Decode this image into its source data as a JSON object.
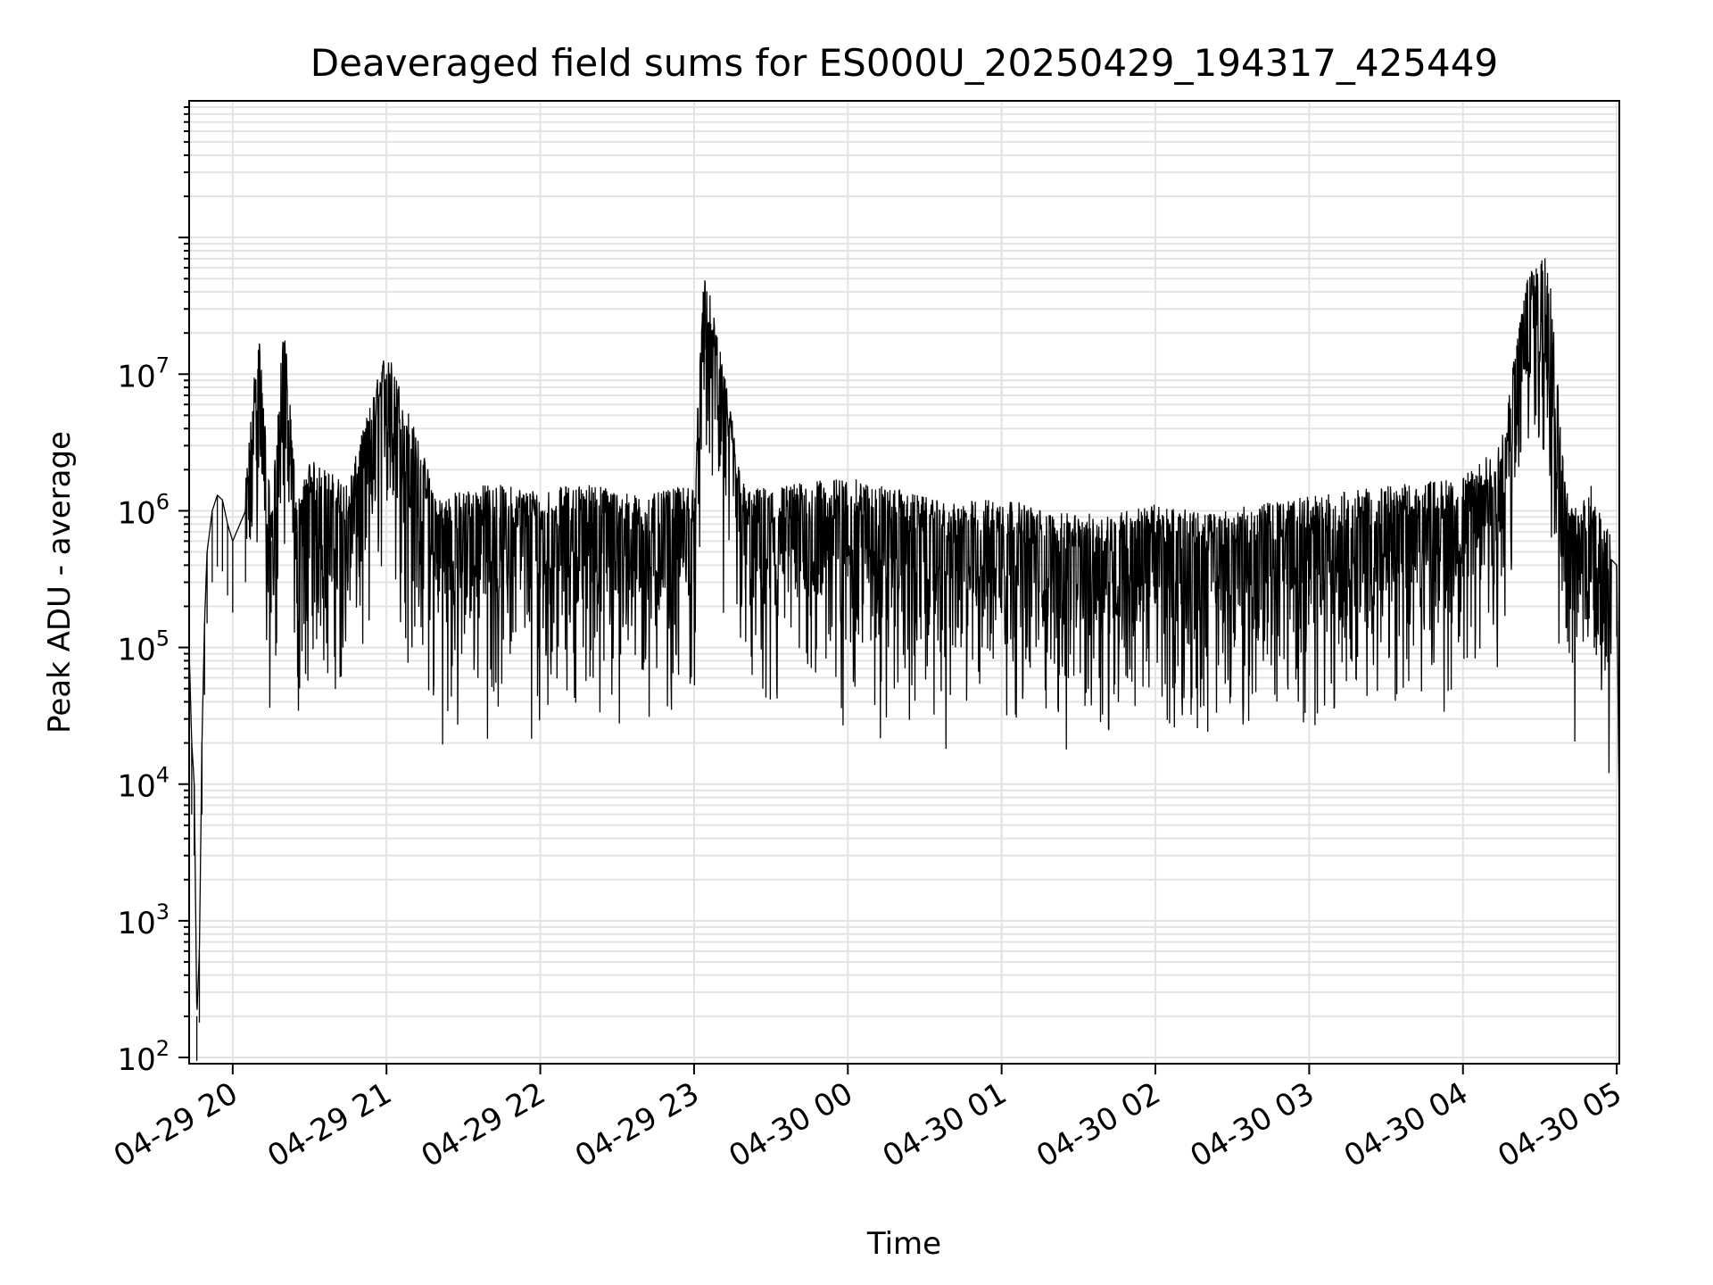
{
  "chart_data": {
    "type": "line",
    "title": "Deaveraged field sums for ES000U_20250429_194317_425449",
    "xlabel": "Time",
    "ylabel": "Peak ADU - average",
    "y_scale": "log",
    "ylim": [
      90,
      1000000000
    ],
    "xlim": [
      "2025-04-29 19:43",
      "2025-04-30 05:01"
    ],
    "x_ticks": [
      "04-29 20",
      "04-29 21",
      "04-29 22",
      "04-29 23",
      "04-30 00",
      "04-30 01",
      "04-30 02",
      "04-30 03",
      "04-30 04",
      "04-30 05"
    ],
    "y_ticks": [
      {
        "base": "10",
        "exp": "2",
        "value": 100
      },
      {
        "base": "10",
        "exp": "3",
        "value": 1000
      },
      {
        "base": "10",
        "exp": "4",
        "value": 10000
      },
      {
        "base": "10",
        "exp": "5",
        "value": 100000
      },
      {
        "base": "10",
        "exp": "6",
        "value": 1000000
      },
      {
        "base": "10",
        "exp": "7",
        "value": 10000000
      }
    ],
    "grid": true,
    "line_color": "#000000",
    "grid_color": "#e3e3e3",
    "series": [
      {
        "x": [
          "2025-04-29 19:43",
          "2025-04-29 19:44",
          "2025-04-29 19:45",
          "2025-04-29 19:46",
          "2025-04-29 19:47",
          "2025-04-29 19:48",
          "2025-04-29 19:49",
          "2025-04-29 19:50",
          "2025-04-29 19:52",
          "2025-04-29 19:54",
          "2025-04-29 19:56",
          "2025-04-29 19:58",
          "2025-04-29 20:00",
          "2025-04-29 20:05",
          "2025-04-29 20:10",
          "2025-04-29 20:15",
          "2025-04-29 20:20",
          "2025-04-29 20:25",
          "2025-04-29 20:30",
          "2025-04-29 20:45",
          "2025-04-29 21:00",
          "2025-04-29 21:20",
          "2025-04-29 21:40",
          "2025-04-29 22:00",
          "2025-04-29 22:20",
          "2025-04-29 22:40",
          "2025-04-29 23:00",
          "2025-04-29 23:04",
          "2025-04-29 23:20",
          "2025-04-29 23:40",
          "2025-04-30 00:00",
          "2025-04-30 00:20",
          "2025-04-30 00:40",
          "2025-04-30 01:00",
          "2025-04-30 01:20",
          "2025-04-30 01:40",
          "2025-04-30 02:00",
          "2025-04-30 02:20",
          "2025-04-30 02:40",
          "2025-04-30 03:00",
          "2025-04-30 03:20",
          "2025-04-30 03:40",
          "2025-04-30 04:00",
          "2025-04-30 04:15",
          "2025-04-30 04:25",
          "2025-04-30 04:33",
          "2025-04-30 04:40",
          "2025-04-30 04:45",
          "2025-04-30 04:50",
          "2025-04-30 04:55",
          "2025-04-30 05:00",
          "2025-04-30 05:01"
        ],
        "y": [
          100000,
          20000,
          10000,
          200,
          600,
          20000,
          150000,
          500000,
          1000000,
          1300000,
          1200000,
          800000,
          600000,
          1000000,
          15000000,
          600000,
          17000000,
          700000,
          1500000,
          1000000,
          10000000,
          800000,
          1000000,
          900000,
          1000000,
          800000,
          1000000,
          40000000,
          900000,
          1000000,
          1100000,
          900000,
          700000,
          800000,
          600000,
          600000,
          700000,
          600000,
          700000,
          800000,
          900000,
          1000000,
          1100000,
          2000000,
          35000000,
          55000000,
          1000000,
          600000,
          1000000,
          500000,
          400000,
          5000
        ]
      }
    ]
  }
}
